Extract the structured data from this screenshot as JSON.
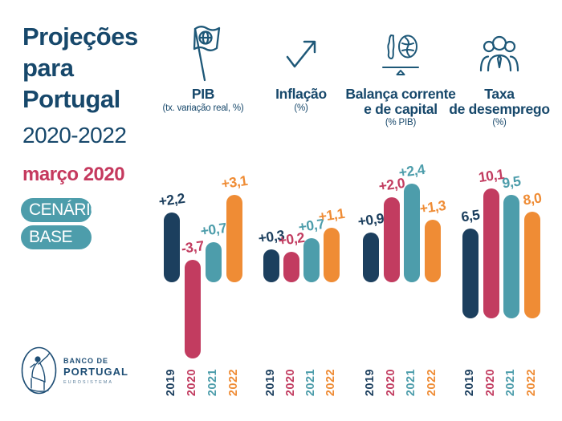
{
  "sidebar": {
    "title_line1": "Projeções",
    "title_line2": "para",
    "title_line3": "Portugal",
    "subtitle": "2020-2022",
    "date": "março 2020",
    "pill_cenario": "CENÁRIO",
    "pill_base": "BASE",
    "logo": {
      "line1": "BANCO DE",
      "line2": "PORTUGAL",
      "line3": "EUROSISTEMA"
    }
  },
  "colors": {
    "navy_2019": "#1C3F5E",
    "crimson_2020": "#C23C60",
    "teal_2021": "#4D9DAB",
    "orange_2022": "#EF8C35",
    "header_navy": "#17486B",
    "icon_navy": "#1E5878",
    "accent_red": "#C5395E",
    "pill_teal": "#4D9DAB"
  },
  "chart_data": {
    "type": "bar",
    "categories": [
      "2019",
      "2020",
      "2021",
      "2022"
    ],
    "year_colors": [
      "#1C3F5E",
      "#C23C60",
      "#4D9DAB",
      "#EF8C35"
    ],
    "legend_position": "none",
    "grid": false,
    "groups": [
      {
        "icon": "flag-globe-icon",
        "title1": "PIB",
        "title2": "",
        "subtitle": "(tx. variação real, %)",
        "values": [
          2.2,
          -3.7,
          0.7,
          3.1
        ],
        "labels": [
          "+2,2",
          "-3,7",
          "+0,7",
          "+3,1"
        ]
      },
      {
        "icon": "rising-arrow-icon",
        "title1": "Inflação",
        "title2": "",
        "subtitle": "(%)",
        "values": [
          0.3,
          0.2,
          0.7,
          1.1
        ],
        "labels": [
          "+0,3",
          "+0,2",
          "+0,7",
          "+1,1"
        ]
      },
      {
        "icon": "balance-scale-icon",
        "title1": "Balança corrente",
        "title2": "e de capital",
        "subtitle": "(% PIB)",
        "values": [
          0.9,
          2.0,
          2.4,
          1.3
        ],
        "labels": [
          "+0,9",
          "+2,0",
          "+2,4",
          "+1,3"
        ]
      },
      {
        "icon": "people-group-icon",
        "title1": "Taxa",
        "title2": "de desemprego",
        "subtitle": "(%)",
        "values": [
          6.5,
          10.1,
          9.5,
          8.0
        ],
        "labels": [
          "6,5",
          "10,1",
          "9,5",
          "8,0"
        ]
      }
    ]
  }
}
